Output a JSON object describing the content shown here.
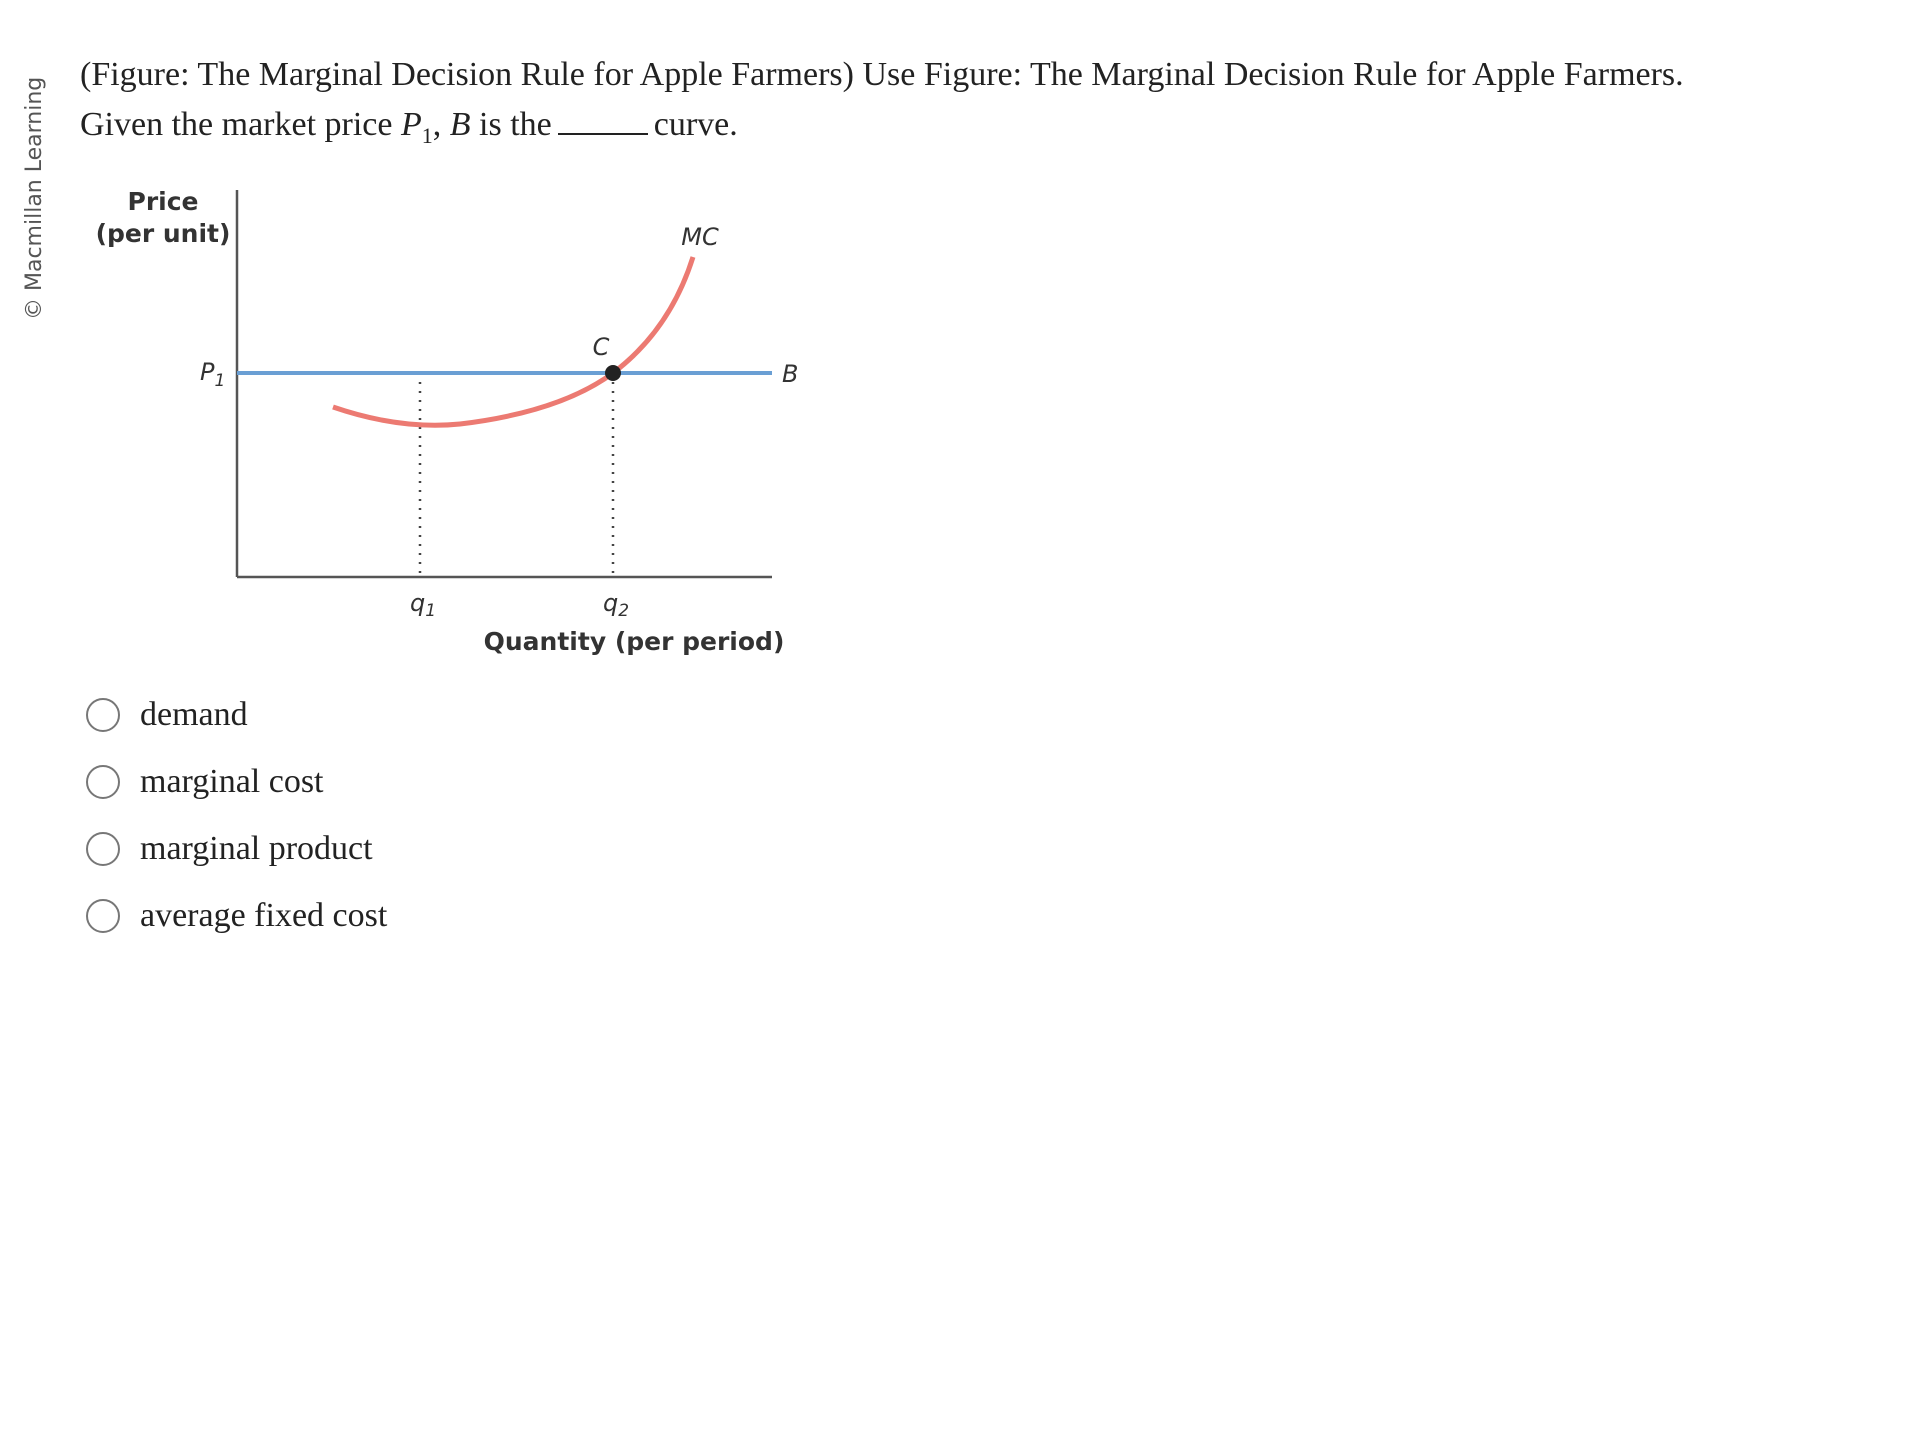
{
  "side_label": "© Macmillan Learning",
  "question": {
    "intro": "(Figure: The Marginal Decision Rule for Apple Farmers) Use Figure: The Marginal Decision Rule for Apple Farmers.",
    "given": "Given the market price",
    "price": "P",
    "price_sub": "1",
    "sep": ",",
    "curve_name": "B",
    "is_the": "is the",
    "end": "curve."
  },
  "figure": {
    "y_label": [
      "Price",
      "(per unit)"
    ],
    "price_label": "P",
    "price_sub": "1",
    "mc_label": "MC",
    "point_label": "C",
    "line_label": "B",
    "q1": "q",
    "q1_sub": "1",
    "q2": "q",
    "q2_sub": "2",
    "x_label": "Quantity (per period)"
  },
  "options": [
    "demand",
    "marginal cost",
    "marginal product",
    "average fixed cost"
  ]
}
